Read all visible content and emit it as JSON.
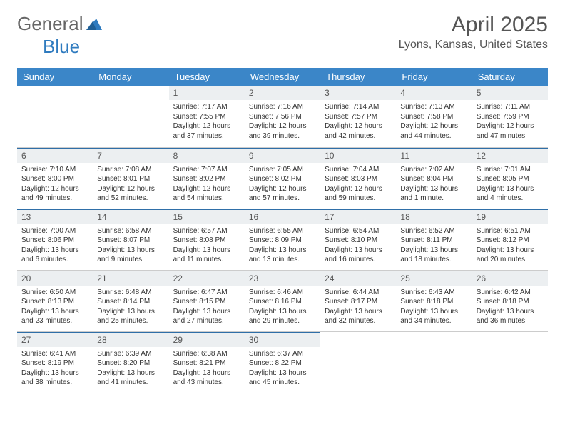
{
  "logo": {
    "part1": "General",
    "part2": "Blue"
  },
  "title": "April 2025",
  "location": "Lyons, Kansas, United States",
  "dayHeaders": [
    "Sunday",
    "Monday",
    "Tuesday",
    "Wednesday",
    "Thursday",
    "Friday",
    "Saturday"
  ],
  "colors": {
    "header_bg": "#3b86c8",
    "header_text": "#ffffff",
    "daynum_bg": "#eceff1",
    "border_top": "#2f6fa8",
    "cell_border": "#cccccc",
    "logo_blue": "#2f7bbf"
  },
  "weeks": [
    [
      null,
      null,
      {
        "n": "1",
        "sr": "Sunrise: 7:17 AM",
        "ss": "Sunset: 7:55 PM",
        "d1": "Daylight: 12 hours",
        "d2": "and 37 minutes."
      },
      {
        "n": "2",
        "sr": "Sunrise: 7:16 AM",
        "ss": "Sunset: 7:56 PM",
        "d1": "Daylight: 12 hours",
        "d2": "and 39 minutes."
      },
      {
        "n": "3",
        "sr": "Sunrise: 7:14 AM",
        "ss": "Sunset: 7:57 PM",
        "d1": "Daylight: 12 hours",
        "d2": "and 42 minutes."
      },
      {
        "n": "4",
        "sr": "Sunrise: 7:13 AM",
        "ss": "Sunset: 7:58 PM",
        "d1": "Daylight: 12 hours",
        "d2": "and 44 minutes."
      },
      {
        "n": "5",
        "sr": "Sunrise: 7:11 AM",
        "ss": "Sunset: 7:59 PM",
        "d1": "Daylight: 12 hours",
        "d2": "and 47 minutes."
      }
    ],
    [
      {
        "n": "6",
        "sr": "Sunrise: 7:10 AM",
        "ss": "Sunset: 8:00 PM",
        "d1": "Daylight: 12 hours",
        "d2": "and 49 minutes."
      },
      {
        "n": "7",
        "sr": "Sunrise: 7:08 AM",
        "ss": "Sunset: 8:01 PM",
        "d1": "Daylight: 12 hours",
        "d2": "and 52 minutes."
      },
      {
        "n": "8",
        "sr": "Sunrise: 7:07 AM",
        "ss": "Sunset: 8:02 PM",
        "d1": "Daylight: 12 hours",
        "d2": "and 54 minutes."
      },
      {
        "n": "9",
        "sr": "Sunrise: 7:05 AM",
        "ss": "Sunset: 8:02 PM",
        "d1": "Daylight: 12 hours",
        "d2": "and 57 minutes."
      },
      {
        "n": "10",
        "sr": "Sunrise: 7:04 AM",
        "ss": "Sunset: 8:03 PM",
        "d1": "Daylight: 12 hours",
        "d2": "and 59 minutes."
      },
      {
        "n": "11",
        "sr": "Sunrise: 7:02 AM",
        "ss": "Sunset: 8:04 PM",
        "d1": "Daylight: 13 hours",
        "d2": "and 1 minute."
      },
      {
        "n": "12",
        "sr": "Sunrise: 7:01 AM",
        "ss": "Sunset: 8:05 PM",
        "d1": "Daylight: 13 hours",
        "d2": "and 4 minutes."
      }
    ],
    [
      {
        "n": "13",
        "sr": "Sunrise: 7:00 AM",
        "ss": "Sunset: 8:06 PM",
        "d1": "Daylight: 13 hours",
        "d2": "and 6 minutes."
      },
      {
        "n": "14",
        "sr": "Sunrise: 6:58 AM",
        "ss": "Sunset: 8:07 PM",
        "d1": "Daylight: 13 hours",
        "d2": "and 9 minutes."
      },
      {
        "n": "15",
        "sr": "Sunrise: 6:57 AM",
        "ss": "Sunset: 8:08 PM",
        "d1": "Daylight: 13 hours",
        "d2": "and 11 minutes."
      },
      {
        "n": "16",
        "sr": "Sunrise: 6:55 AM",
        "ss": "Sunset: 8:09 PM",
        "d1": "Daylight: 13 hours",
        "d2": "and 13 minutes."
      },
      {
        "n": "17",
        "sr": "Sunrise: 6:54 AM",
        "ss": "Sunset: 8:10 PM",
        "d1": "Daylight: 13 hours",
        "d2": "and 16 minutes."
      },
      {
        "n": "18",
        "sr": "Sunrise: 6:52 AM",
        "ss": "Sunset: 8:11 PM",
        "d1": "Daylight: 13 hours",
        "d2": "and 18 minutes."
      },
      {
        "n": "19",
        "sr": "Sunrise: 6:51 AM",
        "ss": "Sunset: 8:12 PM",
        "d1": "Daylight: 13 hours",
        "d2": "and 20 minutes."
      }
    ],
    [
      {
        "n": "20",
        "sr": "Sunrise: 6:50 AM",
        "ss": "Sunset: 8:13 PM",
        "d1": "Daylight: 13 hours",
        "d2": "and 23 minutes."
      },
      {
        "n": "21",
        "sr": "Sunrise: 6:48 AM",
        "ss": "Sunset: 8:14 PM",
        "d1": "Daylight: 13 hours",
        "d2": "and 25 minutes."
      },
      {
        "n": "22",
        "sr": "Sunrise: 6:47 AM",
        "ss": "Sunset: 8:15 PM",
        "d1": "Daylight: 13 hours",
        "d2": "and 27 minutes."
      },
      {
        "n": "23",
        "sr": "Sunrise: 6:46 AM",
        "ss": "Sunset: 8:16 PM",
        "d1": "Daylight: 13 hours",
        "d2": "and 29 minutes."
      },
      {
        "n": "24",
        "sr": "Sunrise: 6:44 AM",
        "ss": "Sunset: 8:17 PM",
        "d1": "Daylight: 13 hours",
        "d2": "and 32 minutes."
      },
      {
        "n": "25",
        "sr": "Sunrise: 6:43 AM",
        "ss": "Sunset: 8:18 PM",
        "d1": "Daylight: 13 hours",
        "d2": "and 34 minutes."
      },
      {
        "n": "26",
        "sr": "Sunrise: 6:42 AM",
        "ss": "Sunset: 8:18 PM",
        "d1": "Daylight: 13 hours",
        "d2": "and 36 minutes."
      }
    ],
    [
      {
        "n": "27",
        "sr": "Sunrise: 6:41 AM",
        "ss": "Sunset: 8:19 PM",
        "d1": "Daylight: 13 hours",
        "d2": "and 38 minutes."
      },
      {
        "n": "28",
        "sr": "Sunrise: 6:39 AM",
        "ss": "Sunset: 8:20 PM",
        "d1": "Daylight: 13 hours",
        "d2": "and 41 minutes."
      },
      {
        "n": "29",
        "sr": "Sunrise: 6:38 AM",
        "ss": "Sunset: 8:21 PM",
        "d1": "Daylight: 13 hours",
        "d2": "and 43 minutes."
      },
      {
        "n": "30",
        "sr": "Sunrise: 6:37 AM",
        "ss": "Sunset: 8:22 PM",
        "d1": "Daylight: 13 hours",
        "d2": "and 45 minutes."
      },
      null,
      null,
      null
    ]
  ]
}
